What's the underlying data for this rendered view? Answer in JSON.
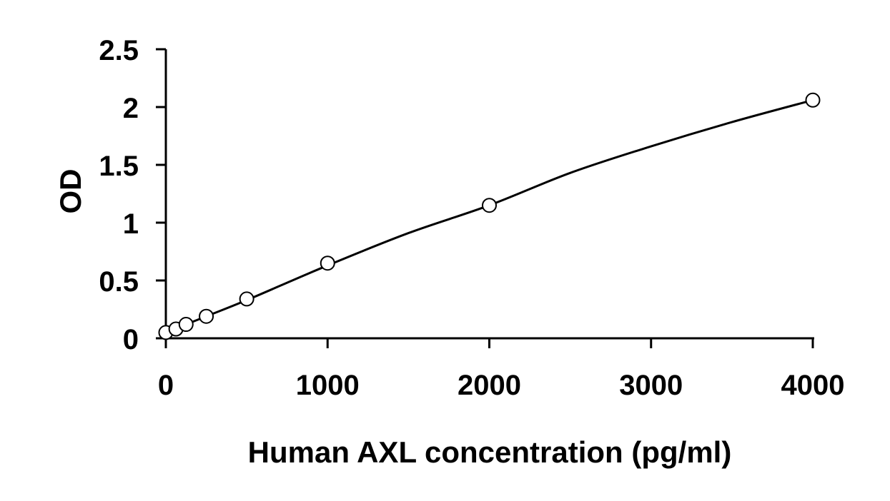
{
  "chart_data": {
    "type": "scatter",
    "title": "",
    "xlabel": "Human AXL concentration (pg/ml)",
    "ylabel": "OD",
    "xlim": [
      0,
      4000
    ],
    "ylim": [
      0,
      2.5
    ],
    "x_ticks": [
      0,
      1000,
      2000,
      3000,
      4000
    ],
    "x_tick_labels": [
      "0",
      "1000",
      "2000",
      "3000",
      "4000"
    ],
    "y_ticks": [
      0,
      0.5,
      1,
      1.5,
      2,
      2.5
    ],
    "y_tick_labels": [
      "0",
      "0.5",
      "1",
      "1.5",
      "2",
      "2.5"
    ],
    "grid": false,
    "legend": "none",
    "series": [
      {
        "marker": "open-circle",
        "color": "#000000",
        "x": [
          0,
          62.5,
          125,
          250,
          500,
          1000,
          2000,
          4000
        ],
        "y": [
          0.05,
          0.08,
          0.12,
          0.19,
          0.34,
          0.65,
          1.15,
          2.06
        ]
      }
    ],
    "fit_line": {
      "x": [
        0,
        250,
        500,
        1000,
        1500,
        2000,
        2500,
        3000,
        3500,
        4000
      ],
      "y": [
        0.05,
        0.19,
        0.33,
        0.63,
        0.91,
        1.15,
        1.43,
        1.66,
        1.87,
        2.06
      ]
    }
  }
}
